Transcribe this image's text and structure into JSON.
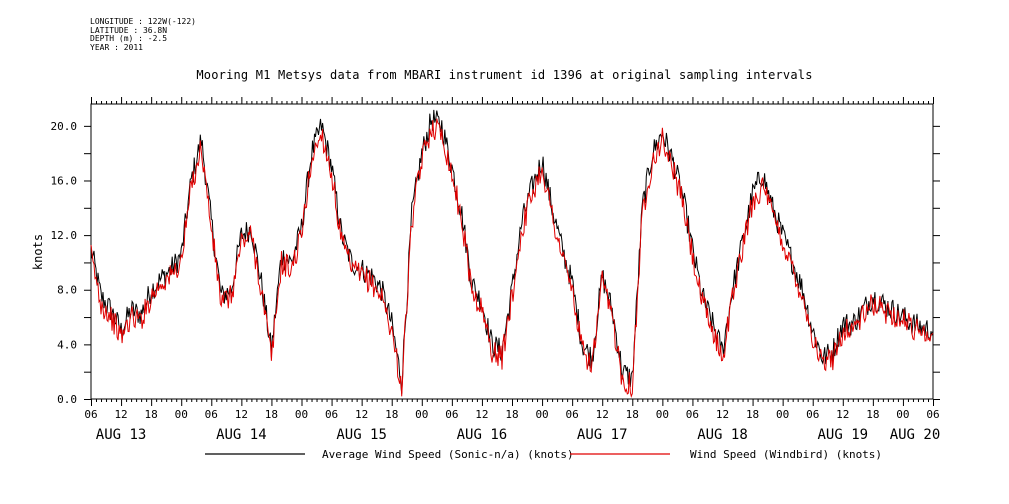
{
  "header": {
    "longitude": "LONGITUDE : 122W(-122)",
    "latitude": "LATITUDE : 36.8N",
    "depth": "DEPTH (m) : -2.5",
    "year": "YEAR : 2011"
  },
  "chart_data": {
    "type": "line",
    "title": "Mooring M1 Metsys data from MBARI instrument id 1396 at original sampling intervals",
    "ylabel": "knots",
    "xlabel": "",
    "ylim": [
      0.0,
      21.6
    ],
    "yticks": [
      "0.0",
      "4.0",
      "8.0",
      "12.0",
      "16.0",
      "20.0"
    ],
    "x_unit": "hours since AUG 13 00:00 (2011)",
    "xlim": [
      6,
      174
    ],
    "hour_ticks": [
      "06",
      "12",
      "18",
      "00",
      "06",
      "12",
      "18",
      "00",
      "06",
      "12",
      "18",
      "00",
      "06",
      "12",
      "18",
      "00",
      "06",
      "12",
      "18",
      "00",
      "06",
      "12",
      "18",
      "00",
      "06",
      "12",
      "18",
      "00",
      "06"
    ],
    "day_labels": [
      "AUG 13",
      "AUG 14",
      "AUG 15",
      "AUG 16",
      "AUG 17",
      "AUG 18",
      "AUG 19",
      "AUG 20"
    ],
    "grid": false,
    "legend_placement": "bottom",
    "series": [
      {
        "name": "Average Wind Speed (Sonic-n/a) (knots)",
        "color": "#000000",
        "x": [
          6,
          8,
          10,
          12,
          14,
          16,
          18,
          20,
          22,
          24,
          26,
          28,
          30,
          32,
          34,
          36,
          38,
          40,
          42,
          44,
          46,
          48,
          50,
          52,
          54,
          56,
          58,
          60,
          62,
          64,
          66,
          68,
          70,
          72,
          74,
          76,
          78,
          80,
          82,
          84,
          86,
          88,
          90,
          92,
          94,
          96,
          98,
          100,
          102,
          104,
          106,
          108,
          110,
          112,
          114,
          116,
          118,
          120,
          122,
          124,
          126,
          128,
          130,
          132,
          134,
          136,
          138,
          140,
          142,
          144,
          146,
          148,
          150,
          152,
          154,
          156,
          158,
          160,
          162,
          164,
          166,
          168,
          170,
          172,
          174
        ],
        "values": [
          11.0,
          7.5,
          6.5,
          5.0,
          6.5,
          6.2,
          8.0,
          8.8,
          9.5,
          10.5,
          16.0,
          19.0,
          13.0,
          7.5,
          8.0,
          12.0,
          12.5,
          8.5,
          3.5,
          10.5,
          10.0,
          12.5,
          18.0,
          20.0,
          17.0,
          12.0,
          10.0,
          9.5,
          9.0,
          8.0,
          5.5,
          1.2,
          13.5,
          18.0,
          20.5,
          20.0,
          17.0,
          13.5,
          8.5,
          7.0,
          4.0,
          3.5,
          8.0,
          13.0,
          15.5,
          17.5,
          14.0,
          11.0,
          8.5,
          4.0,
          3.0,
          9.0,
          6.5,
          2.0,
          1.5,
          14.0,
          18.0,
          19.5,
          17.5,
          15.0,
          11.0,
          7.5,
          5.5,
          3.5,
          8.0,
          11.5,
          15.0,
          16.5,
          14.0,
          12.0,
          10.0,
          8.0,
          5.0,
          3.0,
          3.5,
          5.5,
          5.5,
          6.5,
          7.5,
          7.0,
          6.5,
          6.0,
          5.5,
          5.2,
          5.0
        ]
      },
      {
        "name": "Wind Speed (Windbird) (knots)",
        "color": "#e00000",
        "x": [
          6,
          8,
          10,
          12,
          14,
          16,
          18,
          20,
          22,
          24,
          26,
          28,
          30,
          32,
          34,
          36,
          38,
          40,
          42,
          44,
          46,
          48,
          50,
          52,
          54,
          56,
          58,
          60,
          62,
          64,
          66,
          68,
          70,
          72,
          74,
          76,
          78,
          80,
          82,
          84,
          86,
          88,
          90,
          92,
          94,
          96,
          98,
          100,
          102,
          104,
          106,
          108,
          110,
          112,
          114,
          116,
          118,
          120,
          122,
          124,
          126,
          128,
          130,
          132,
          134,
          136,
          138,
          140,
          142,
          144,
          146,
          148,
          150,
          152,
          154,
          156,
          158,
          160,
          162,
          164,
          166,
          168,
          170,
          172,
          174
        ],
        "values": [
          10.5,
          7.0,
          6.0,
          4.5,
          6.0,
          5.8,
          7.5,
          8.5,
          9.0,
          10.0,
          15.5,
          18.5,
          12.5,
          7.0,
          7.5,
          11.5,
          12.0,
          8.0,
          3.0,
          10.0,
          9.5,
          12.0,
          17.5,
          19.5,
          16.5,
          11.5,
          9.5,
          9.0,
          8.5,
          7.5,
          5.0,
          0.8,
          13.0,
          17.5,
          20.0,
          19.5,
          16.5,
          13.0,
          8.0,
          6.5,
          3.5,
          3.0,
          7.5,
          12.5,
          15.0,
          17.0,
          13.5,
          10.5,
          8.0,
          3.5,
          2.5,
          8.5,
          6.0,
          1.5,
          1.0,
          13.5,
          17.5,
          19.0,
          17.0,
          14.5,
          10.5,
          7.0,
          5.0,
          3.0,
          7.5,
          11.0,
          14.5,
          15.5,
          13.5,
          11.5,
          9.5,
          7.5,
          4.5,
          2.5,
          3.0,
          5.0,
          5.2,
          6.0,
          7.0,
          6.5,
          6.2,
          5.8,
          5.2,
          5.0,
          4.8
        ]
      }
    ]
  }
}
